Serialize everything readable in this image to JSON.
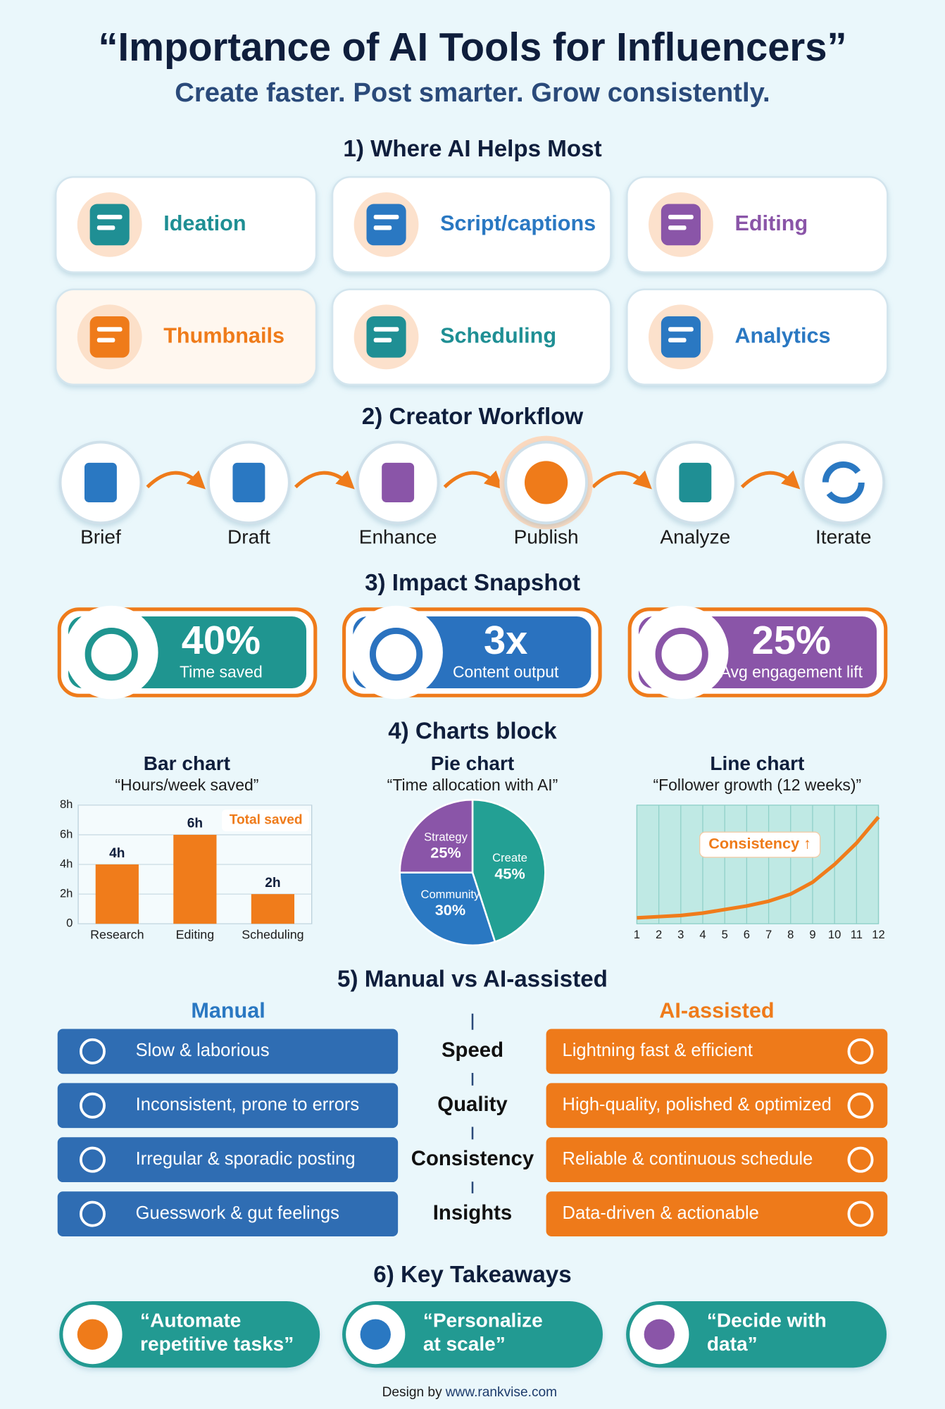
{
  "header": {
    "title": "“Importance of AI Tools for Influencers”",
    "subtitle": "Create faster. Post smarter. Grow consistently."
  },
  "sections": {
    "helps": {
      "title": "1) Where AI Helps Most",
      "items": [
        "Ideation",
        "Script/captions",
        "Editing",
        "Thumbnails",
        "Scheduling",
        "Analytics"
      ]
    },
    "workflow": {
      "title": "2) Creator Workflow",
      "steps": [
        "Brief",
        "Draft",
        "Enhance",
        "Publish",
        "Analyze",
        "Iterate"
      ]
    },
    "impact": {
      "title": "3) Impact Snapshot",
      "cards": [
        {
          "value": "40%",
          "label": "Time saved"
        },
        {
          "value": "3x",
          "label": "Content output"
        },
        {
          "value": "25%",
          "label": "Avg engagement lift"
        }
      ]
    },
    "charts": {
      "title": "4) Charts block"
    },
    "compare": {
      "title": "5) Manual vs AI-assisted",
      "left_heading": "Manual",
      "right_heading": "AI-assisted",
      "rows": [
        {
          "aspect": "Speed",
          "manual": "Slow & laborious",
          "ai": "Lightning fast & efficient"
        },
        {
          "aspect": "Quality",
          "manual": "Inconsistent, prone to errors",
          "ai": "High-quality, polished & optimized"
        },
        {
          "aspect": "Consistency",
          "manual": "Irregular & sporadic posting",
          "ai": "Reliable & continuous schedule"
        },
        {
          "aspect": "Insights",
          "manual": "Guesswork & gut feelings",
          "ai": "Data-driven & actionable"
        }
      ]
    },
    "takeaways": {
      "title": "6) Key Takeaways",
      "items": [
        [
          "“Automate",
          "repetitive tasks”"
        ],
        [
          "“Personalize",
          "at scale”"
        ],
        [
          "“Decide with",
          "data”"
        ]
      ]
    }
  },
  "chart_data": [
    {
      "type": "bar",
      "title": "Bar chart",
      "subtitle": "“Hours/week saved”",
      "categories": [
        "Research",
        "Editing",
        "Scheduling"
      ],
      "values": [
        4,
        6,
        2
      ],
      "value_labels": [
        "4h",
        "6h",
        "2h"
      ],
      "color": "#f07c1b",
      "ylim": [
        0,
        8
      ],
      "yticks": [
        0,
        {
          "value": 2,
          "label": "2h"
        },
        {
          "value": 4,
          "label": "4h"
        },
        {
          "value": 6,
          "label": "6h"
        },
        {
          "value": 8,
          "label": "8h"
        }
      ],
      "grid": true,
      "annotation": "Total saved"
    },
    {
      "type": "pie",
      "title": "Pie chart",
      "subtitle": "“Time allocation with AI”",
      "categories": [
        "Create",
        "Community",
        "Strategy"
      ],
      "values": [
        45,
        30,
        25
      ],
      "value_labels": [
        "45%",
        "30%",
        "25%"
      ],
      "colors": [
        "#23a094",
        "#2a78c2",
        "#8a55a8"
      ]
    },
    {
      "type": "line",
      "title": "Line chart",
      "subtitle": "“Follower growth (12 weeks)”",
      "x": [
        1,
        2,
        3,
        4,
        5,
        6,
        7,
        8,
        9,
        10,
        11,
        12
      ],
      "values": [
        5,
        6,
        7,
        9,
        12,
        15,
        19,
        25,
        35,
        50,
        68,
        90
      ],
      "color": "#f07c1b",
      "xlim": [
        1,
        12
      ],
      "xticks": [
        1,
        2,
        3,
        4,
        5,
        6,
        7,
        8,
        9,
        10,
        11,
        12
      ],
      "ylim": [
        0,
        100
      ],
      "grid": true,
      "annotation": "Consistency ↑"
    }
  ],
  "footer": {
    "prefix": "Design by",
    "site": "www.rankvise.com"
  }
}
